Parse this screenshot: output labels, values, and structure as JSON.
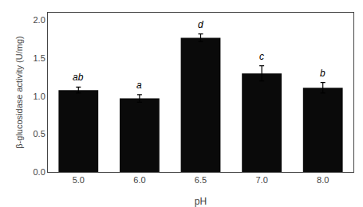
{
  "chart_data": {
    "type": "bar",
    "categories": [
      "5.0",
      "6.0",
      "6.5",
      "7.0",
      "8.0"
    ],
    "values": [
      1.08,
      0.97,
      1.77,
      1.3,
      1.11
    ],
    "errors": [
      0.04,
      0.05,
      0.05,
      0.1,
      0.07
    ],
    "annotations": [
      "ab",
      "a",
      "d",
      "c",
      "b"
    ],
    "color": "#0a0a0a",
    "xlabel": "pH",
    "ylabel": "β-glucosidase activity (U/mg)",
    "ylim": [
      0,
      2.1
    ],
    "yticks": [
      {
        "value": 0.0,
        "label": "0.0"
      },
      0.5,
      {
        "value": 1.0,
        "label": "1.0"
      },
      1.5,
      {
        "value": 2.0,
        "label": "2.0"
      }
    ],
    "grid": false
  }
}
